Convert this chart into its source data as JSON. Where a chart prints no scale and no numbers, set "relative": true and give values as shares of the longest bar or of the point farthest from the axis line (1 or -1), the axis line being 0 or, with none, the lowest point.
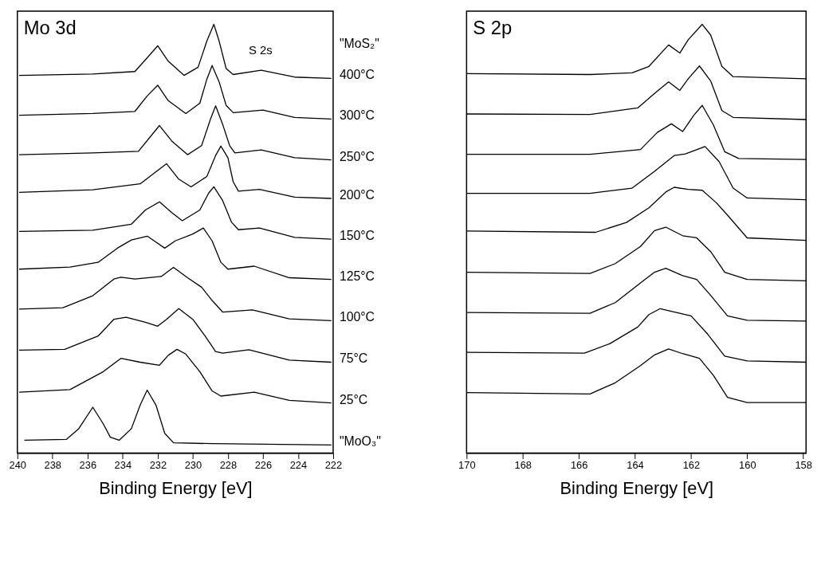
{
  "chart_data": [
    {
      "type": "line",
      "relative": true,
      "xlim": [
        240,
        222
      ],
      "xticks": [
        240,
        238,
        236,
        234,
        232,
        230,
        228,
        226,
        224,
        222
      ],
      "xlabel": "Binding Energy [eV]",
      "annotations": [
        "Mo 3d",
        "S 2s",
        "\"MoS₂\""
      ],
      "series": [
        {
          "name": "400°C",
          "color": "#000000",
          "x": [
            239.9,
            235.7,
            233.3,
            232.6,
            232.0,
            231.4,
            230.5,
            229.7,
            229.2,
            228.8,
            228.5,
            228.1,
            227.7,
            226.1,
            224.2,
            222.1
          ],
          "values": [
            0.881,
            0.884,
            0.89,
            0.922,
            0.95,
            0.914,
            0.881,
            0.9,
            0.961,
            1.0,
            0.961,
            0.897,
            0.883,
            0.893,
            0.877,
            0.874
          ]
        },
        {
          "name": "300°C",
          "color": "#000000",
          "x": [
            239.9,
            235.7,
            233.3,
            232.6,
            232.0,
            231.4,
            230.4,
            229.6,
            229.2,
            228.9,
            228.5,
            228.1,
            227.7,
            226.0,
            224.2,
            222.1
          ],
          "values": [
            0.788,
            0.792,
            0.797,
            0.833,
            0.858,
            0.822,
            0.792,
            0.816,
            0.872,
            0.904,
            0.866,
            0.811,
            0.794,
            0.8,
            0.783,
            0.779
          ]
        },
        {
          "name": "250°C",
          "color": "#000000",
          "x": [
            239.9,
            235.7,
            233.1,
            232.4,
            231.9,
            231.2,
            230.3,
            229.5,
            229.0,
            228.7,
            228.3,
            227.9,
            227.6,
            226.1,
            224.2,
            222.1
          ],
          "values": [
            0.696,
            0.7,
            0.704,
            0.739,
            0.764,
            0.728,
            0.696,
            0.717,
            0.778,
            0.81,
            0.767,
            0.717,
            0.7,
            0.707,
            0.689,
            0.684
          ]
        },
        {
          "name": "200°C",
          "color": "#000000",
          "x": [
            239.9,
            235.7,
            233.0,
            232.2,
            231.5,
            230.8,
            230.1,
            229.2,
            228.7,
            228.4,
            228.0,
            227.7,
            227.4,
            226.2,
            224.2,
            222.1
          ],
          "values": [
            0.608,
            0.614,
            0.628,
            0.653,
            0.675,
            0.639,
            0.621,
            0.645,
            0.694,
            0.716,
            0.689,
            0.633,
            0.611,
            0.615,
            0.597,
            0.594
          ]
        },
        {
          "name": "150°C",
          "color": "#000000",
          "x": [
            239.9,
            235.7,
            233.5,
            232.7,
            231.9,
            231.2,
            230.6,
            229.6,
            229.1,
            228.8,
            228.3,
            227.8,
            227.4,
            226.2,
            224.2,
            222.1
          ],
          "values": [
            0.517,
            0.52,
            0.534,
            0.567,
            0.586,
            0.561,
            0.542,
            0.567,
            0.606,
            0.621,
            0.589,
            0.539,
            0.521,
            0.525,
            0.503,
            0.499
          ]
        },
        {
          "name": "125°C",
          "color": "#000000",
          "x": [
            239.9,
            237.0,
            235.4,
            234.3,
            233.5,
            232.6,
            232.2,
            231.6,
            231.0,
            230.0,
            229.4,
            228.9,
            228.4,
            228.0,
            226.5,
            224.5,
            222.1
          ],
          "values": [
            0.429,
            0.434,
            0.445,
            0.478,
            0.497,
            0.506,
            0.495,
            0.478,
            0.495,
            0.511,
            0.525,
            0.495,
            0.445,
            0.429,
            0.436,
            0.409,
            0.405
          ]
        },
        {
          "name": "100°C",
          "color": "#000000",
          "x": [
            239.9,
            237.4,
            235.7,
            234.5,
            234.1,
            233.3,
            231.8,
            231.1,
            230.3,
            229.5,
            228.9,
            228.3,
            226.6,
            224.5,
            222.1
          ],
          "values": [
            0.336,
            0.339,
            0.367,
            0.406,
            0.41,
            0.406,
            0.412,
            0.433,
            0.409,
            0.387,
            0.356,
            0.329,
            0.334,
            0.313,
            0.309
          ]
        },
        {
          "name": "75°C",
          "color": "#000000",
          "x": [
            239.9,
            237.3,
            235.4,
            234.5,
            233.8,
            232.7,
            232.0,
            231.5,
            230.8,
            230.0,
            229.3,
            228.7,
            228.3,
            226.8,
            224.5,
            222.1
          ],
          "values": [
            0.24,
            0.242,
            0.273,
            0.312,
            0.317,
            0.305,
            0.296,
            0.312,
            0.337,
            0.312,
            0.273,
            0.237,
            0.233,
            0.241,
            0.217,
            0.212
          ]
        },
        {
          "name": "25°C",
          "color": "#000000",
          "x": [
            239.9,
            237.0,
            235.1,
            234.1,
            233.0,
            231.9,
            231.4,
            230.9,
            230.4,
            229.6,
            228.9,
            228.4,
            226.5,
            224.5,
            222.1
          ],
          "values": [
            0.142,
            0.148,
            0.19,
            0.221,
            0.212,
            0.205,
            0.228,
            0.242,
            0.231,
            0.19,
            0.145,
            0.133,
            0.142,
            0.123,
            0.117
          ]
        },
        {
          "name": "\"MoO₃\"",
          "color": "#000000",
          "x": [
            239.6,
            237.2,
            236.5,
            235.7,
            235.1,
            234.7,
            234.2,
            233.5,
            233.0,
            232.6,
            232.1,
            231.6,
            231.1,
            228.9,
            222.1
          ],
          "values": [
            0.03,
            0.032,
            0.057,
            0.107,
            0.068,
            0.037,
            0.03,
            0.057,
            0.112,
            0.147,
            0.112,
            0.046,
            0.024,
            0.022,
            0.019
          ]
        }
      ]
    },
    {
      "type": "line",
      "relative": true,
      "xlim": [
        170,
        157.9
      ],
      "xticks": [
        170,
        168,
        166,
        164,
        162,
        160,
        158
      ],
      "xlabel": "Binding Energy [eV]",
      "annotations": [
        "S 2p"
      ],
      "series": [
        {
          "color": "#000000",
          "x": [
            170.0,
            165.6,
            164.1,
            163.5,
            162.8,
            162.4,
            162.1,
            161.6,
            161.3,
            160.9,
            160.5,
            157.9
          ],
          "values": [
            0.885,
            0.883,
            0.887,
            0.902,
            0.952,
            0.933,
            0.964,
            1.0,
            0.975,
            0.902,
            0.878,
            0.873
          ]
        },
        {
          "color": "#000000",
          "x": [
            170.0,
            165.6,
            163.9,
            163.3,
            162.8,
            162.4,
            162.1,
            161.7,
            161.3,
            160.9,
            160.5,
            157.9
          ],
          "values": [
            0.791,
            0.79,
            0.805,
            0.839,
            0.866,
            0.846,
            0.873,
            0.903,
            0.868,
            0.799,
            0.783,
            0.778
          ]
        },
        {
          "color": "#000000",
          "x": [
            170.0,
            165.6,
            163.8,
            163.2,
            162.7,
            162.3,
            161.9,
            161.6,
            161.2,
            160.8,
            160.3,
            157.9
          ],
          "values": [
            0.697,
            0.697,
            0.708,
            0.748,
            0.768,
            0.75,
            0.788,
            0.811,
            0.765,
            0.703,
            0.687,
            0.685
          ]
        },
        {
          "color": "#000000",
          "x": [
            170.0,
            165.6,
            164.1,
            163.3,
            162.6,
            162.2,
            161.5,
            161.0,
            160.5,
            160.0,
            157.9
          ],
          "values": [
            0.606,
            0.606,
            0.618,
            0.657,
            0.694,
            0.698,
            0.715,
            0.68,
            0.618,
            0.595,
            0.591
          ]
        },
        {
          "color": "#000000",
          "x": [
            170.0,
            165.4,
            164.3,
            163.5,
            162.9,
            162.6,
            162.1,
            161.6,
            161.1,
            160.7,
            160.0,
            157.9
          ],
          "values": [
            0.518,
            0.515,
            0.538,
            0.572,
            0.609,
            0.62,
            0.615,
            0.613,
            0.584,
            0.555,
            0.502,
            0.496
          ]
        },
        {
          "color": "#000000",
          "x": [
            170.0,
            165.6,
            164.7,
            163.8,
            163.3,
            162.9,
            162.3,
            161.8,
            161.3,
            160.8,
            160.0,
            157.9
          ],
          "values": [
            0.422,
            0.419,
            0.442,
            0.482,
            0.519,
            0.527,
            0.507,
            0.502,
            0.47,
            0.422,
            0.405,
            0.402
          ]
        },
        {
          "color": "#000000",
          "x": [
            170.0,
            165.6,
            164.7,
            163.8,
            163.3,
            162.9,
            162.3,
            161.8,
            161.3,
            160.7,
            160.0,
            157.9
          ],
          "values": [
            0.328,
            0.326,
            0.351,
            0.397,
            0.422,
            0.431,
            0.414,
            0.405,
            0.368,
            0.32,
            0.31,
            0.308
          ]
        },
        {
          "color": "#000000",
          "x": [
            170.0,
            165.8,
            164.9,
            163.9,
            163.5,
            163.1,
            162.4,
            162.0,
            161.4,
            160.8,
            160.0,
            157.9
          ],
          "values": [
            0.235,
            0.233,
            0.255,
            0.294,
            0.323,
            0.337,
            0.326,
            0.32,
            0.277,
            0.226,
            0.215,
            0.212
          ]
        },
        {
          "color": "#000000",
          "x": [
            170.0,
            165.6,
            164.7,
            163.8,
            163.3,
            162.8,
            162.3,
            161.7,
            161.2,
            160.7,
            160.0,
            157.9
          ],
          "values": [
            0.141,
            0.138,
            0.164,
            0.204,
            0.229,
            0.243,
            0.232,
            0.221,
            0.181,
            0.13,
            0.118,
            0.118
          ]
        }
      ]
    }
  ]
}
